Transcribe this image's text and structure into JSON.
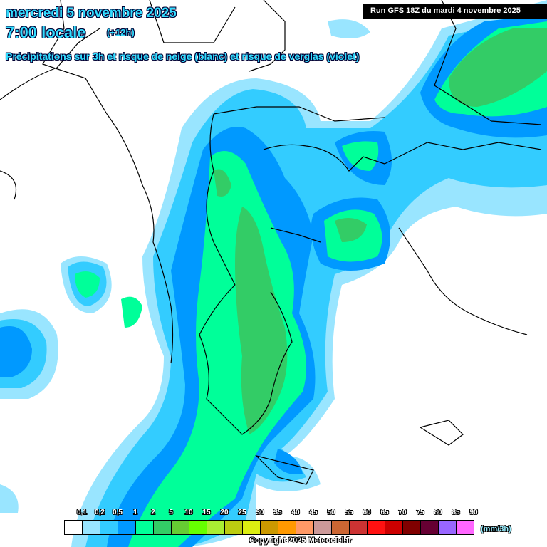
{
  "header": {
    "date": "mercredi 5 novembre 2025",
    "time": "7:00 locale",
    "lead": "(+12h)",
    "subtitle": "Précipitations sur 3h et risque de neige (blanc) et risque de verglas (violet)",
    "run": "Run GFS 18Z du mardi 4 novembre 2025"
  },
  "legend": {
    "labels": [
      "0,1",
      "0,2",
      "0,5",
      "1",
      "2",
      "5",
      "10",
      "15",
      "20",
      "25",
      "30",
      "35",
      "40",
      "45",
      "50",
      "55",
      "60",
      "65",
      "70",
      "75",
      "80",
      "85",
      "90"
    ],
    "colors": [
      "#ffffff",
      "#99e5ff",
      "#33ccff",
      "#0099ff",
      "#00ff99",
      "#33cc66",
      "#66cc33",
      "#66ff00",
      "#aaee33",
      "#bbcc11",
      "#ddee11",
      "#cc9900",
      "#ff9900",
      "#ff9966",
      "#cc9999",
      "#cc6633",
      "#cc3333",
      "#ff1111",
      "#cc0000",
      "#800000",
      "#660033",
      "#9966ff",
      "#ff66ff"
    ],
    "unit": "(mm/3h)"
  },
  "copyright": "Copyright 2025 Meteociel.fr"
}
